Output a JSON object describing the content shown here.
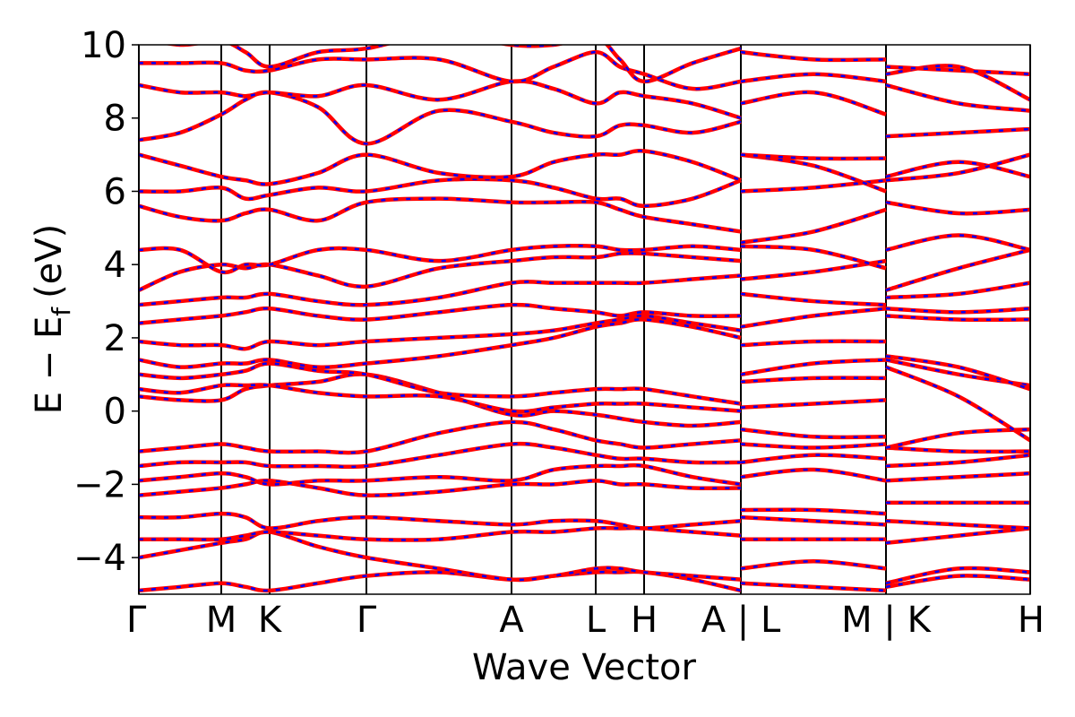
{
  "chart_data": {
    "type": "line",
    "xlabel": "Wave Vector",
    "ylabel": {
      "text": "E − E",
      "subscript": "f",
      "unit": "(eV)"
    },
    "color": "#ff0000",
    "overlay_color": "#0000ff",
    "xlim": [
      0,
      9.95
    ],
    "xticks": [
      {
        "value": 0,
        "label": "Γ"
      },
      {
        "value": 0.92,
        "label": "M"
      },
      {
        "value": 1.46,
        "label": "K"
      },
      {
        "value": 2.54,
        "label": "Γ"
      },
      {
        "value": 4.16,
        "label": "A"
      },
      {
        "value": 5.1,
        "label": "L"
      },
      {
        "value": 5.64,
        "label": "H"
      },
      {
        "value": 6.72,
        "label": "A | L"
      },
      {
        "value": 8.34,
        "label": "M | K"
      },
      {
        "value": 9.95,
        "label": "H"
      }
    ],
    "ylim": [
      -5,
      10
    ],
    "yticks": [
      {
        "value": -4,
        "label": "−4"
      },
      {
        "value": -2,
        "label": "−2"
      },
      0,
      2,
      4,
      6,
      8,
      10
    ],
    "x": [
      0,
      0.46,
      0.92,
      1.19,
      1.46,
      2.0,
      2.54,
      3.35,
      4.16,
      4.63,
      5.1,
      5.37,
      5.64,
      6.18,
      6.72,
      6.72,
      6.72,
      7.53,
      8.34,
      8.34,
      8.34,
      9.15,
      9.95
    ],
    "series": [
      {
        "values": [
          -4.9,
          -4.8,
          -4.7,
          -4.8,
          -4.9,
          -4.7,
          -4.5,
          -4.4,
          -4.6,
          -4.5,
          -4.4,
          -4.4,
          -4.4,
          -4.6,
          -4.9,
          null,
          -4.7,
          -4.8,
          -4.9,
          null,
          -4.7,
          -4.3,
          -4.4
        ]
      },
      {
        "values": [
          -4.0,
          -3.8,
          -3.6,
          -3.5,
          -3.3,
          -3.7,
          -4.0,
          -4.3,
          -4.6,
          -4.5,
          -4.3,
          -4.3,
          -4.4,
          -4.5,
          -4.6,
          null,
          -4.3,
          -4.1,
          -4.3,
          null,
          -4.8,
          -4.5,
          -4.6
        ]
      },
      {
        "values": [
          -3.5,
          -3.5,
          -3.5,
          -3.4,
          -3.3,
          -3.4,
          -3.5,
          -3.5,
          -3.3,
          -3.3,
          -3.2,
          -3.2,
          -3.2,
          -3.3,
          -3.4,
          null,
          -3.5,
          -3.5,
          -3.5,
          null,
          -3.6,
          -3.4,
          -3.2
        ]
      },
      {
        "values": [
          -2.9,
          -2.9,
          -2.8,
          -2.9,
          -3.2,
          -3.0,
          -2.9,
          -3.0,
          -3.1,
          -3.0,
          -3.0,
          -3.1,
          -3.2,
          -3.1,
          -3.0,
          null,
          -2.9,
          -3.0,
          -3.1,
          null,
          -3.0,
          -3.1,
          -3.2
        ]
      },
      {
        "values": [
          -2.3,
          -2.2,
          -2.1,
          -2.0,
          -1.9,
          -2.1,
          -2.3,
          -2.2,
          -2.0,
          -2.0,
          -1.9,
          -2.0,
          -2.0,
          -2.1,
          -2.1,
          null,
          -2.7,
          -2.7,
          -2.8,
          null,
          -2.5,
          -2.5,
          -2.5
        ]
      },
      {
        "values": [
          -1.9,
          -1.8,
          -1.7,
          -1.8,
          -2.0,
          -1.9,
          -1.9,
          -1.8,
          -1.9,
          -1.6,
          -1.5,
          -1.5,
          -1.5,
          -1.8,
          -2.0,
          null,
          -1.8,
          -1.6,
          -1.9,
          null,
          -1.9,
          -1.8,
          -1.7
        ]
      },
      {
        "values": [
          -1.5,
          -1.4,
          -1.4,
          -1.4,
          -1.5,
          -1.5,
          -1.5,
          -1.2,
          -0.9,
          -1.0,
          -1.2,
          -1.3,
          -1.3,
          -1.4,
          -1.4,
          null,
          -1.4,
          -1.2,
          -1.3,
          null,
          -1.5,
          -1.4,
          -1.2
        ]
      },
      {
        "values": [
          -1.1,
          -1.0,
          -0.9,
          -1.0,
          -1.1,
          -1.1,
          -1.1,
          -0.6,
          -0.3,
          -0.5,
          -0.8,
          -0.9,
          -1.0,
          -0.9,
          -0.8,
          null,
          -0.9,
          -1.0,
          -0.9,
          null,
          -1.0,
          -1.1,
          -1.1
        ]
      },
      {
        "values": [
          0.4,
          0.3,
          0.3,
          0.6,
          0.7,
          0.8,
          1.0,
          0.5,
          -0.1,
          0.0,
          -0.1,
          -0.2,
          -0.3,
          -0.4,
          -0.3,
          null,
          -0.5,
          -0.7,
          -0.7,
          null,
          -1.0,
          -0.6,
          -0.5
        ]
      },
      {
        "values": [
          0.6,
          0.5,
          0.7,
          0.7,
          0.7,
          0.5,
          0.4,
          0.4,
          0.0,
          0.1,
          0.2,
          0.2,
          0.2,
          0.1,
          0.0,
          null,
          0.1,
          0.2,
          0.3,
          null,
          1.2,
          0.4,
          -0.8
        ]
      },
      {
        "values": [
          1.0,
          0.9,
          1.0,
          1.1,
          1.3,
          1.1,
          1.0,
          0.5,
          0.4,
          0.5,
          0.6,
          0.6,
          0.6,
          0.4,
          0.2,
          null,
          0.8,
          0.9,
          0.9,
          null,
          1.4,
          1.0,
          0.7
        ]
      },
      {
        "values": [
          1.4,
          1.2,
          1.3,
          1.3,
          1.4,
          1.2,
          1.3,
          1.5,
          1.8,
          2.0,
          2.3,
          2.4,
          2.5,
          2.3,
          2.0,
          null,
          1.0,
          1.3,
          1.4,
          null,
          1.5,
          1.2,
          0.6
        ]
      },
      {
        "values": [
          1.9,
          1.8,
          1.8,
          1.7,
          1.9,
          1.8,
          1.9,
          2.0,
          2.1,
          2.2,
          2.4,
          2.5,
          2.6,
          2.4,
          2.2,
          null,
          1.8,
          1.9,
          1.9,
          null,
          2.6,
          2.5,
          2.5
        ]
      },
      {
        "values": [
          2.4,
          2.5,
          2.6,
          2.7,
          2.8,
          2.6,
          2.5,
          2.7,
          2.9,
          2.8,
          2.7,
          2.6,
          2.7,
          2.6,
          2.6,
          null,
          2.3,
          2.6,
          2.8,
          null,
          2.8,
          2.7,
          2.8
        ]
      },
      {
        "values": [
          2.9,
          3.0,
          3.1,
          3.1,
          3.2,
          3.0,
          2.9,
          3.1,
          3.5,
          3.5,
          3.5,
          3.5,
          3.5,
          3.6,
          3.7,
          null,
          3.2,
          3.0,
          2.9,
          null,
          3.1,
          3.2,
          3.5
        ]
      },
      {
        "values": [
          3.3,
          3.8,
          4.0,
          3.9,
          4.0,
          3.7,
          3.4,
          3.9,
          4.1,
          4.2,
          4.2,
          4.3,
          4.3,
          4.2,
          4.1,
          null,
          3.6,
          3.8,
          4.1,
          null,
          3.3,
          3.9,
          4.4
        ]
      },
      {
        "values": [
          4.4,
          4.4,
          3.8,
          4.0,
          4.0,
          4.4,
          4.4,
          4.1,
          4.4,
          4.5,
          4.5,
          4.4,
          4.4,
          4.5,
          4.4,
          null,
          4.5,
          4.4,
          3.9,
          null,
          4.4,
          4.8,
          4.4
        ]
      },
      {
        "values": [
          5.6,
          5.3,
          5.2,
          5.4,
          5.5,
          5.2,
          5.7,
          5.8,
          5.7,
          5.7,
          5.7,
          5.5,
          5.3,
          5.1,
          4.9,
          null,
          4.6,
          4.9,
          5.5,
          null,
          5.7,
          5.4,
          5.5
        ]
      },
      {
        "values": [
          6.0,
          6.0,
          6.1,
          5.8,
          5.9,
          6.1,
          6.0,
          6.3,
          6.3,
          6.1,
          5.8,
          5.8,
          5.6,
          5.8,
          6.3,
          null,
          6.0,
          6.1,
          6.3,
          null,
          6.4,
          6.8,
          6.4
        ]
      },
      {
        "values": [
          7.0,
          6.7,
          6.4,
          6.3,
          6.2,
          6.5,
          7.0,
          6.5,
          6.4,
          6.8,
          7.0,
          7.0,
          7.1,
          6.8,
          6.3,
          null,
          7.0,
          6.7,
          6.0,
          null,
          6.3,
          6.5,
          7.0
        ]
      },
      {
        "values": [
          7.4,
          7.6,
          8.1,
          8.5,
          8.7,
          8.3,
          7.3,
          8.2,
          7.9,
          7.6,
          7.5,
          7.8,
          7.8,
          7.6,
          7.9,
          null,
          7.0,
          6.9,
          6.9,
          null,
          7.5,
          7.6,
          7.7
        ]
      },
      {
        "values": [
          8.9,
          8.7,
          8.7,
          8.6,
          8.7,
          8.6,
          8.9,
          8.5,
          9.0,
          8.8,
          8.4,
          8.7,
          8.6,
          8.4,
          8.0,
          null,
          8.4,
          8.7,
          8.1,
          null,
          8.9,
          8.4,
          8.2
        ]
      },
      {
        "values": [
          9.5,
          9.5,
          9.5,
          9.3,
          9.3,
          9.6,
          9.6,
          9.6,
          9.0,
          9.4,
          9.8,
          9.4,
          9.2,
          8.8,
          9.0,
          null,
          9.0,
          9.2,
          9.0,
          null,
          9.2,
          9.4,
          8.5
        ]
      },
      {
        "values": [
          10.2,
          10.0,
          10.1,
          9.8,
          9.4,
          9.8,
          9.9,
          10.3,
          10.0,
          10.0,
          10.2,
          9.6,
          9.0,
          9.5,
          9.9,
          null,
          9.8,
          9.6,
          9.6,
          null,
          9.4,
          9.3,
          9.2
        ]
      }
    ]
  }
}
